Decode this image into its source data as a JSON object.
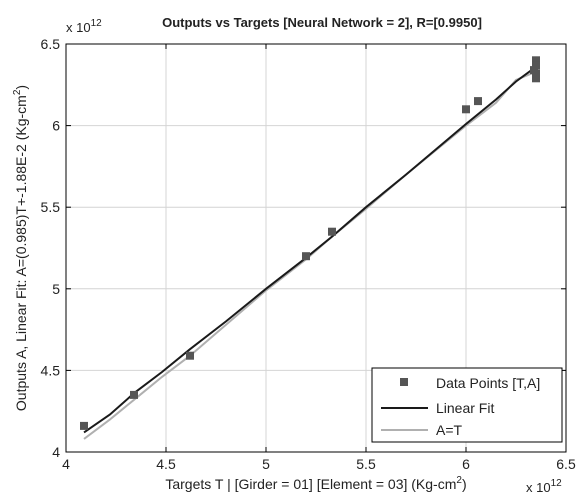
{
  "chart_data": {
    "type": "scatter",
    "title": "Outputs vs Targets [Neural Network = 2], R=[0.9950]",
    "xlabel": "Targets T | [Girder = 01]  [Element = 03]  (Kg-cm",
    "xlabel_sup": "2",
    "xlabel_end": ")",
    "ylabel": "Outputs A,  Linear Fit: A=(0.985)T+-1.88E-2  (Kg-cm",
    "ylabel_sup": "2",
    "ylabel_end": ")",
    "x_exponent_base": "x 10",
    "x_exponent_power": "12",
    "y_exponent_base": "x 10",
    "y_exponent_power": "12",
    "xlim": [
      4.0,
      6.5
    ],
    "ylim": [
      4.0,
      6.5
    ],
    "xticks": [
      4.0,
      4.5,
      5.0,
      5.5,
      6.0,
      6.5
    ],
    "xtick_labels": [
      "4",
      "4.5",
      "5",
      "5.5",
      "6",
      "6.5"
    ],
    "yticks": [
      4.0,
      4.5,
      5.0,
      5.5,
      6.0,
      6.5
    ],
    "ytick_labels": [
      "4",
      "4.5",
      "5",
      "5.5",
      "6",
      "6.5"
    ],
    "grid": true,
    "legend_position": "bottom-right",
    "series": [
      {
        "name": "Data Points [T,A]",
        "kind": "scatter",
        "color": "#555555",
        "points": [
          [
            4.09,
            4.16
          ],
          [
            4.34,
            4.35
          ],
          [
            4.62,
            4.59
          ],
          [
            5.2,
            5.2
          ],
          [
            5.33,
            5.35
          ],
          [
            6.0,
            6.1
          ],
          [
            6.06,
            6.15
          ],
          [
            6.34,
            6.34
          ],
          [
            6.35,
            6.4
          ],
          [
            6.35,
            6.37
          ],
          [
            6.35,
            6.32
          ],
          [
            6.35,
            6.29
          ]
        ]
      },
      {
        "name": "Linear Fit",
        "kind": "line",
        "color": "#1a1a1a",
        "points": [
          [
            4.09,
            4.12
          ],
          [
            4.22,
            4.23
          ],
          [
            4.34,
            4.36
          ],
          [
            4.48,
            4.49
          ],
          [
            4.62,
            4.63
          ],
          [
            4.8,
            4.8
          ],
          [
            5.0,
            5.0
          ],
          [
            5.2,
            5.19
          ],
          [
            5.33,
            5.32
          ],
          [
            5.5,
            5.5
          ],
          [
            5.7,
            5.7
          ],
          [
            6.0,
            6.01
          ],
          [
            6.15,
            6.16
          ],
          [
            6.25,
            6.27
          ],
          [
            6.35,
            6.36
          ]
        ]
      },
      {
        "name": "A=T",
        "kind": "line",
        "color": "#b0b0b0",
        "points": [
          [
            4.09,
            4.08
          ],
          [
            4.22,
            4.2
          ],
          [
            4.34,
            4.32
          ],
          [
            4.48,
            4.46
          ],
          [
            4.62,
            4.59
          ],
          [
            4.8,
            4.78
          ],
          [
            5.0,
            4.99
          ],
          [
            5.2,
            5.18
          ],
          [
            5.33,
            5.32
          ],
          [
            5.5,
            5.49
          ],
          [
            5.7,
            5.7
          ],
          [
            6.0,
            6.0
          ],
          [
            6.15,
            6.14
          ],
          [
            6.25,
            6.28
          ],
          [
            6.35,
            6.33
          ]
        ]
      }
    ]
  }
}
